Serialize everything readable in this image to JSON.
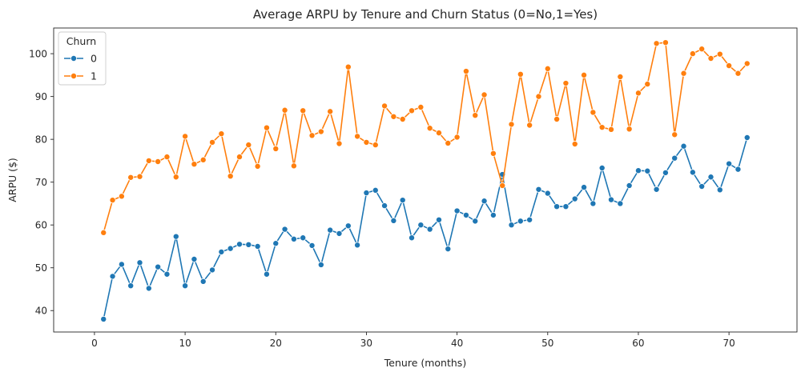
{
  "chart_data": {
    "type": "line",
    "title": "Average ARPU by Tenure and Churn Status (0=No,1=Yes)",
    "xlabel": "Tenure (months)",
    "ylabel": "ARPU ($)",
    "xlim": [
      -4.5,
      77.5
    ],
    "ylim": [
      35,
      106
    ],
    "xticks": [
      0,
      10,
      20,
      30,
      40,
      50,
      60,
      70
    ],
    "yticks": [
      40,
      50,
      60,
      70,
      80,
      90,
      100
    ],
    "grid": false,
    "legend": {
      "title": "Churn",
      "placement": "top-left"
    },
    "markers": "circle",
    "series": [
      {
        "name": "0",
        "color": "#1f77b4",
        "x": [
          1,
          2,
          3,
          4,
          5,
          6,
          7,
          8,
          9,
          10,
          11,
          12,
          13,
          14,
          15,
          16,
          17,
          18,
          19,
          20,
          21,
          22,
          23,
          24,
          25,
          26,
          27,
          28,
          29,
          30,
          31,
          32,
          33,
          34,
          35,
          36,
          37,
          38,
          39,
          40,
          41,
          42,
          43,
          44,
          45,
          46,
          47,
          48,
          49,
          50,
          51,
          52,
          53,
          54,
          55,
          56,
          57,
          58,
          59,
          60,
          61,
          62,
          63,
          64,
          65,
          66,
          67,
          68,
          69,
          70,
          71,
          72
        ],
        "values": [
          38.0,
          48.0,
          50.8,
          45.8,
          51.2,
          45.2,
          50.2,
          48.5,
          57.3,
          45.8,
          52.0,
          46.8,
          49.5,
          53.7,
          54.5,
          55.5,
          55.4,
          55.0,
          48.5,
          55.7,
          59.0,
          56.7,
          57.0,
          55.2,
          50.7,
          58.8,
          58.0,
          59.8,
          55.3,
          67.5,
          68.1,
          64.5,
          61.0,
          65.8,
          57.0,
          60.0,
          59.0,
          61.2,
          54.4,
          63.3,
          62.3,
          60.9,
          65.6,
          62.3,
          71.8,
          60.0,
          60.9,
          61.2,
          68.3,
          67.4,
          64.3,
          64.3,
          66.1,
          68.8,
          65.0,
          73.3,
          65.9,
          65.0,
          69.2,
          72.7,
          72.6,
          68.3,
          72.2,
          75.6,
          78.4,
          72.3,
          69.0,
          71.2,
          68.2,
          74.3,
          73.0,
          80.4
        ]
      },
      {
        "name": "1",
        "color": "#ff7f0e",
        "x": [
          1,
          2,
          3,
          4,
          5,
          6,
          7,
          8,
          9,
          10,
          11,
          12,
          13,
          14,
          15,
          16,
          17,
          18,
          19,
          20,
          21,
          22,
          23,
          24,
          25,
          26,
          27,
          28,
          29,
          30,
          31,
          32,
          33,
          34,
          35,
          36,
          37,
          38,
          39,
          40,
          41,
          42,
          43,
          44,
          45,
          46,
          47,
          48,
          49,
          50,
          51,
          52,
          53,
          54,
          55,
          56,
          57,
          58,
          59,
          60,
          61,
          62,
          63,
          64,
          65,
          66,
          67,
          68,
          69,
          70,
          71,
          72
        ],
        "values": [
          58.2,
          65.8,
          66.7,
          71.1,
          71.3,
          75.0,
          74.8,
          75.9,
          71.2,
          80.7,
          74.2,
          75.2,
          79.3,
          81.3,
          71.4,
          75.9,
          78.7,
          73.7,
          82.7,
          77.8,
          86.8,
          73.8,
          86.7,
          80.9,
          81.8,
          86.5,
          79.0,
          96.9,
          80.7,
          79.3,
          78.7,
          87.8,
          85.3,
          84.7,
          86.7,
          87.5,
          82.6,
          81.5,
          79.1,
          80.5,
          95.9,
          85.6,
          90.4,
          76.7,
          69.2,
          83.5,
          95.2,
          83.3,
          90.0,
          96.5,
          84.7,
          93.1,
          78.9,
          95.0,
          86.3,
          82.8,
          82.3,
          94.6,
          82.4,
          90.8,
          92.9,
          102.4,
          102.6,
          81.1,
          95.4,
          100.0,
          101.1,
          98.9,
          99.9,
          97.2,
          95.4,
          97.7
        ]
      }
    ]
  }
}
